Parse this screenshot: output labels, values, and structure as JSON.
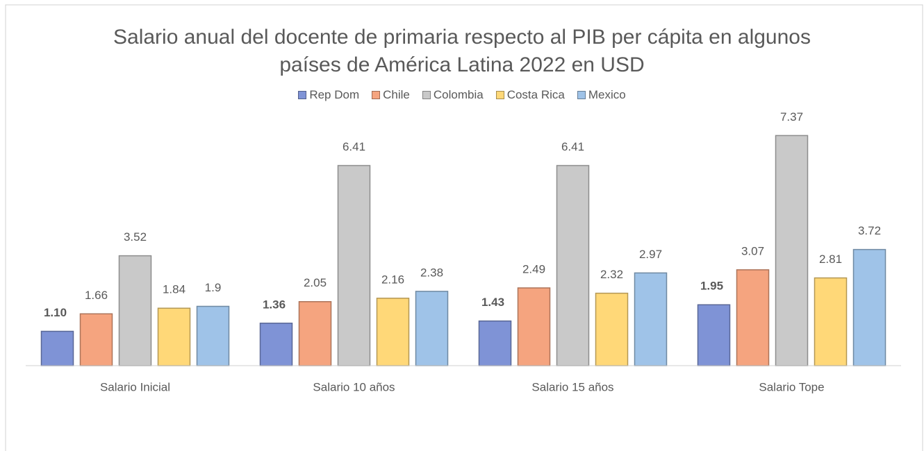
{
  "chart_data": {
    "type": "bar",
    "title": "Salario anual del docente de primaria respecto al PIB per cápita en algunos países de América Latina 2022 en USD",
    "categories": [
      "Salario Inicial",
      "Salario 10 años",
      "Salario 15 años",
      "Salario Tope"
    ],
    "series": [
      {
        "name": "Rep Dom",
        "color": "#7f93d6",
        "values": [
          1.1,
          1.36,
          1.43,
          1.95
        ],
        "value_labels": [
          "1.10",
          "1.36",
          "1.43",
          "1.95"
        ]
      },
      {
        "name": "Chile",
        "color": "#f5a47f",
        "values": [
          1.66,
          2.05,
          2.49,
          3.07
        ]
      },
      {
        "name": "Colombia",
        "color": "#c9c9c9",
        "values": [
          3.52,
          6.41,
          6.41,
          7.37
        ]
      },
      {
        "name": "Costa Rica",
        "color": "#ffd878",
        "values": [
          1.84,
          2.16,
          2.32,
          2.81
        ]
      },
      {
        "name": "Mexico",
        "color": "#9fc3e8",
        "values": [
          1.9,
          2.38,
          2.97,
          3.72
        ]
      }
    ],
    "ylim": [
      0,
      8
    ],
    "legend": "top"
  }
}
